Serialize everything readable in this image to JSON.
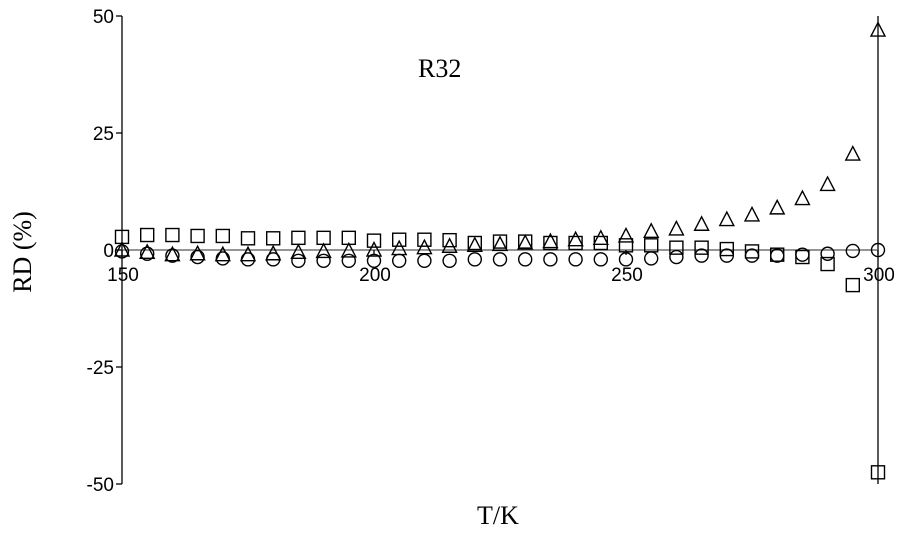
{
  "chart_data": {
    "type": "scatter",
    "title": "",
    "annotation": "R32",
    "xlabel": "T/K",
    "ylabel": "RD (%)",
    "xlim": [
      150,
      300
    ],
    "ylim": [
      -50,
      50
    ],
    "x_ticks": [
      "150",
      "200",
      "250",
      "300"
    ],
    "y_ticks": [
      "50",
      "25",
      "0",
      "-25",
      "-50"
    ],
    "grid": false,
    "legend": "none",
    "series": [
      {
        "marker": "square",
        "x": [
          150,
          155,
          160,
          165,
          170,
          175,
          180,
          185,
          190,
          195,
          200,
          205,
          210,
          215,
          220,
          225,
          230,
          235,
          240,
          245,
          250,
          255,
          260,
          265,
          270,
          275,
          280,
          285,
          290,
          295,
          300
        ],
        "y": [
          2.8,
          3.2,
          3.2,
          3.0,
          3.0,
          2.5,
          2.5,
          2.6,
          2.6,
          2.6,
          2.0,
          2.2,
          2.2,
          2.1,
          1.5,
          1.8,
          1.8,
          1.5,
          1.5,
          1.5,
          1.0,
          1.0,
          0.5,
          0.5,
          0.2,
          -0.3,
          -1.0,
          -1.5,
          -3.0,
          -7.5,
          -47.5
        ]
      },
      {
        "marker": "circle",
        "x": [
          150,
          155,
          160,
          165,
          170,
          175,
          180,
          185,
          190,
          195,
          200,
          205,
          210,
          215,
          220,
          225,
          230,
          235,
          240,
          245,
          250,
          255,
          260,
          265,
          270,
          275,
          280,
          285,
          290,
          295,
          300
        ],
        "y": [
          -0.3,
          -0.8,
          -1.2,
          -1.5,
          -1.8,
          -2.0,
          -2.0,
          -2.3,
          -2.3,
          -2.3,
          -2.3,
          -2.3,
          -2.3,
          -2.3,
          -2.0,
          -2.0,
          -2.0,
          -2.0,
          -2.0,
          -2.0,
          -2.0,
          -1.8,
          -1.5,
          -1.2,
          -1.2,
          -1.2,
          -1.2,
          -1.0,
          -0.8,
          -0.2,
          0.0
        ]
      },
      {
        "marker": "triangle",
        "x": [
          150,
          155,
          160,
          165,
          170,
          175,
          180,
          185,
          190,
          195,
          200,
          205,
          210,
          215,
          220,
          225,
          230,
          235,
          240,
          245,
          250,
          255,
          260,
          265,
          270,
          275,
          280,
          285,
          290,
          295,
          300
        ],
        "y": [
          0.0,
          -0.5,
          -1.0,
          -0.8,
          -1.0,
          -1.0,
          -0.8,
          -0.5,
          -0.3,
          -0.2,
          0.0,
          0.3,
          0.5,
          0.8,
          1.0,
          1.2,
          1.5,
          1.8,
          2.2,
          2.5,
          3.0,
          4.0,
          4.5,
          5.5,
          6.5,
          7.5,
          9.0,
          11.0,
          14.0,
          20.5,
          47.0
        ]
      }
    ]
  }
}
